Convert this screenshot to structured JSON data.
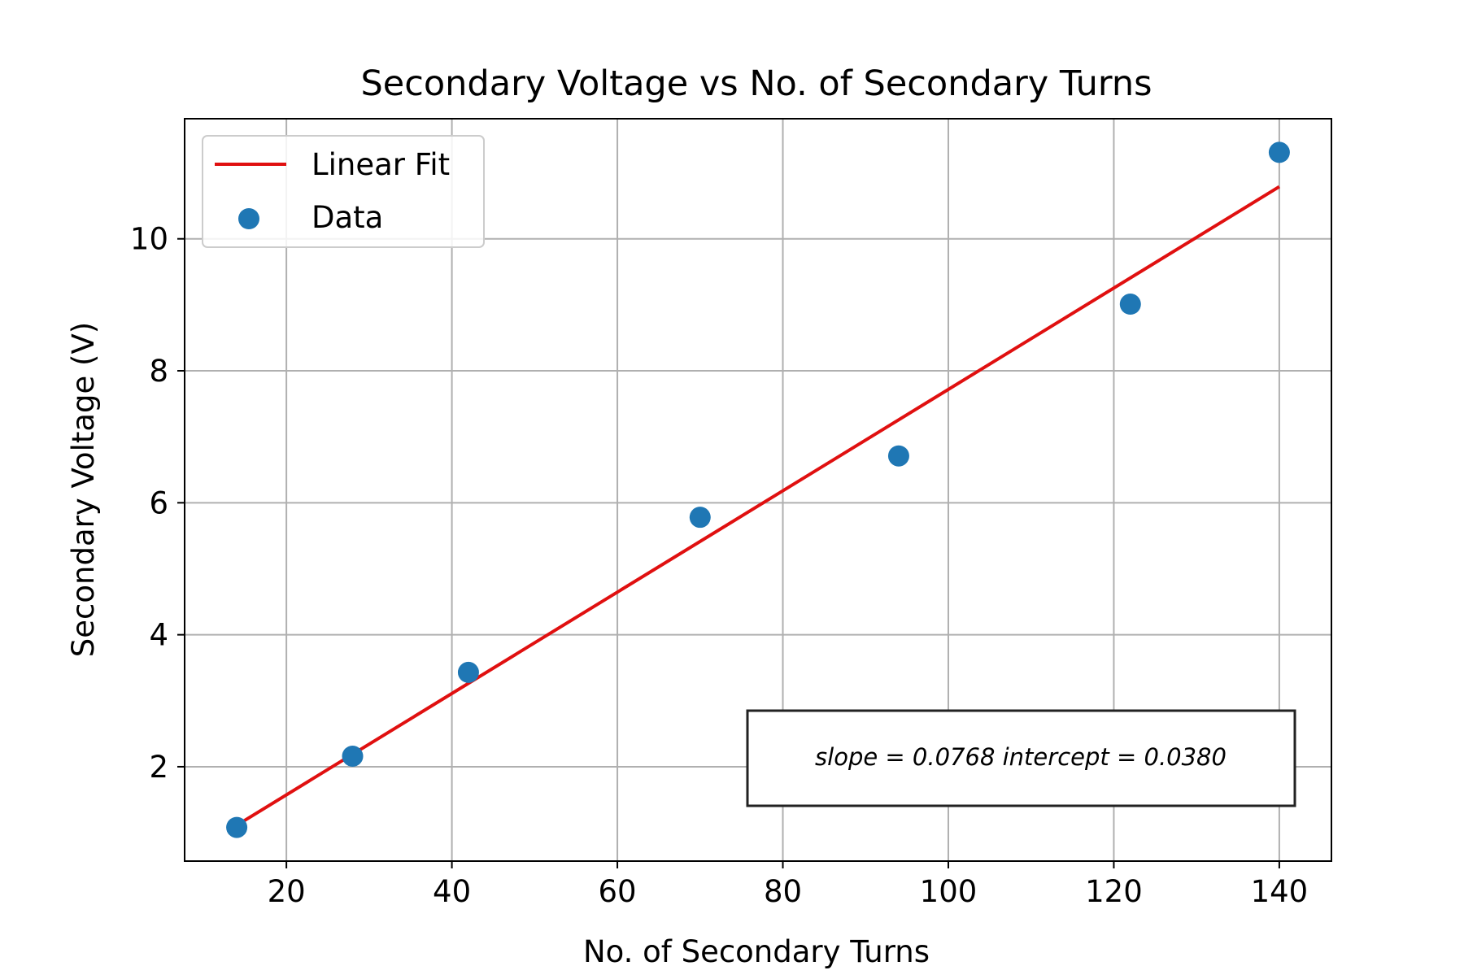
{
  "chart_data": {
    "type": "scatter",
    "title": "Secondary Voltage vs No. of Secondary Turns",
    "xlabel": "No. of Secondary Turns",
    "ylabel": "Secondary Voltage (V)",
    "xlim": [
      7.7,
      146.3
    ],
    "ylim": [
      0.57,
      11.82
    ],
    "xticks": [
      20,
      40,
      60,
      80,
      100,
      120,
      140
    ],
    "yticks": [
      2,
      4,
      6,
      8,
      10
    ],
    "grid": true,
    "legend_position": "top-left",
    "legend": [
      {
        "label": "Linear Fit",
        "kind": "line",
        "color": "#e01010"
      },
      {
        "label": "Data",
        "kind": "marker",
        "color": "#1f77b4"
      }
    ],
    "series": [
      {
        "name": "Data",
        "kind": "scatter",
        "color": "#1f77b4",
        "x": [
          14,
          28,
          42,
          70,
          94,
          122,
          140
        ],
        "y": [
          1.08,
          2.16,
          3.43,
          5.78,
          6.71,
          9.01,
          11.31
        ]
      },
      {
        "name": "Linear Fit",
        "kind": "line",
        "color": "#e01010",
        "x": [
          14,
          140
        ],
        "y": [
          1.1132,
          10.79
        ]
      }
    ],
    "annotation": {
      "text": "slope = 0.0768 intercept = 0.0380",
      "position": "bottom-right"
    }
  }
}
